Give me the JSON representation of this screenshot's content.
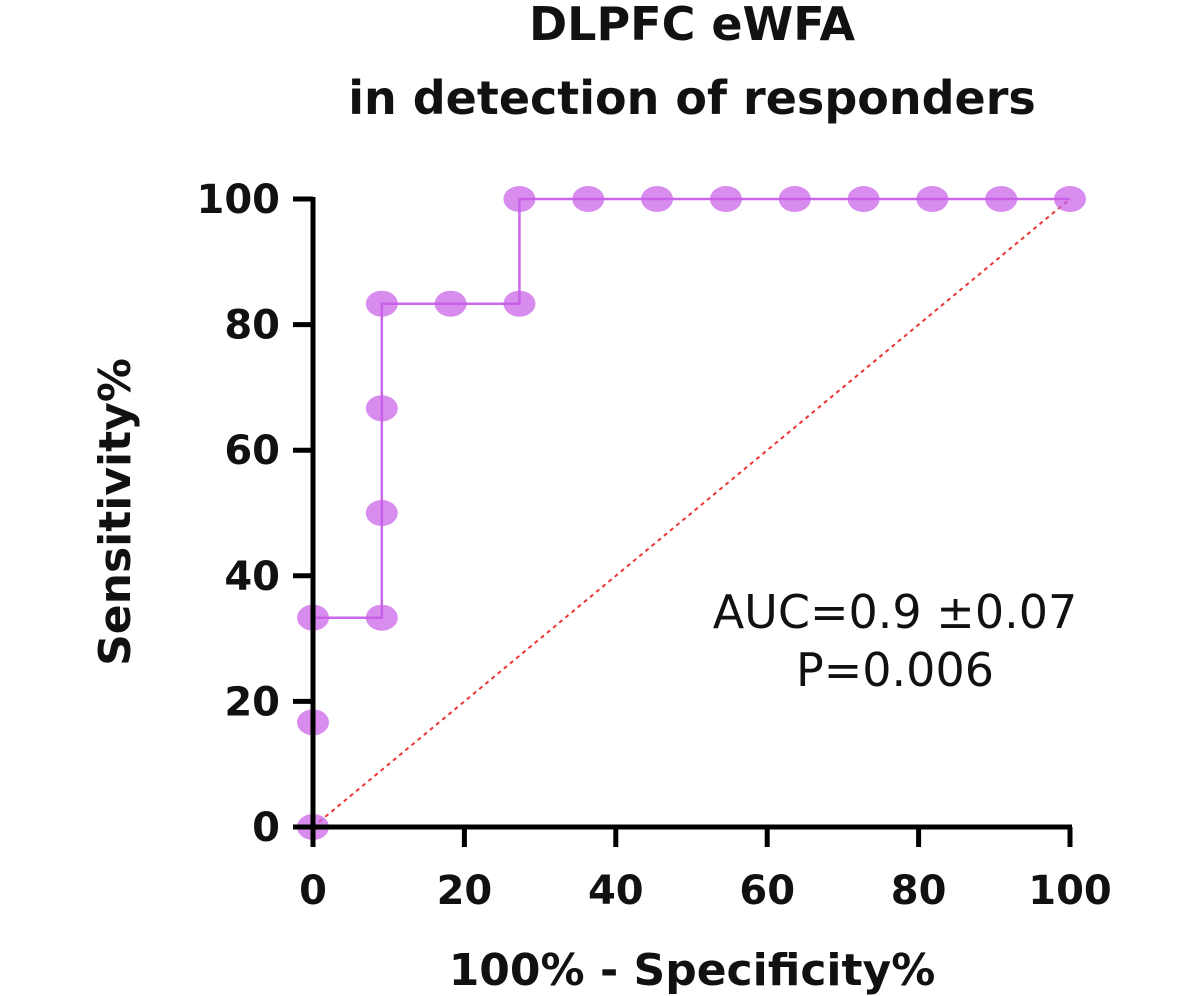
{
  "chart_data": {
    "type": "line",
    "title_lines": [
      "DLPFC eWFA",
      "in detection of responders"
    ],
    "xlabel": "100% - Specificity%",
    "ylabel": "Sensitivity%",
    "xlim": [
      0,
      100
    ],
    "ylim": [
      0,
      100
    ],
    "xticks": [
      0,
      20,
      40,
      60,
      80,
      100
    ],
    "yticks": [
      0,
      20,
      40,
      60,
      80,
      100
    ],
    "grid": false,
    "series": [
      {
        "color": "#c85fe8",
        "x": [
          0,
          0,
          0,
          9.09,
          9.09,
          9.09,
          9.09,
          18.18,
          27.27,
          27.27,
          36.36,
          45.45,
          54.55,
          63.64,
          72.73,
          81.82,
          90.91,
          100
        ],
        "y": [
          0,
          16.67,
          33.33,
          33.33,
          50,
          66.67,
          83.33,
          83.33,
          83.33,
          100,
          100,
          100,
          100,
          100,
          100,
          100,
          100,
          100
        ]
      }
    ],
    "reference_line": {
      "x": [
        0,
        100
      ],
      "y": [
        0,
        100
      ],
      "color": "#ee3333",
      "style": "dotted"
    },
    "annotations": [
      "AUC=0.9 ±0.07",
      "P=0.006"
    ]
  }
}
